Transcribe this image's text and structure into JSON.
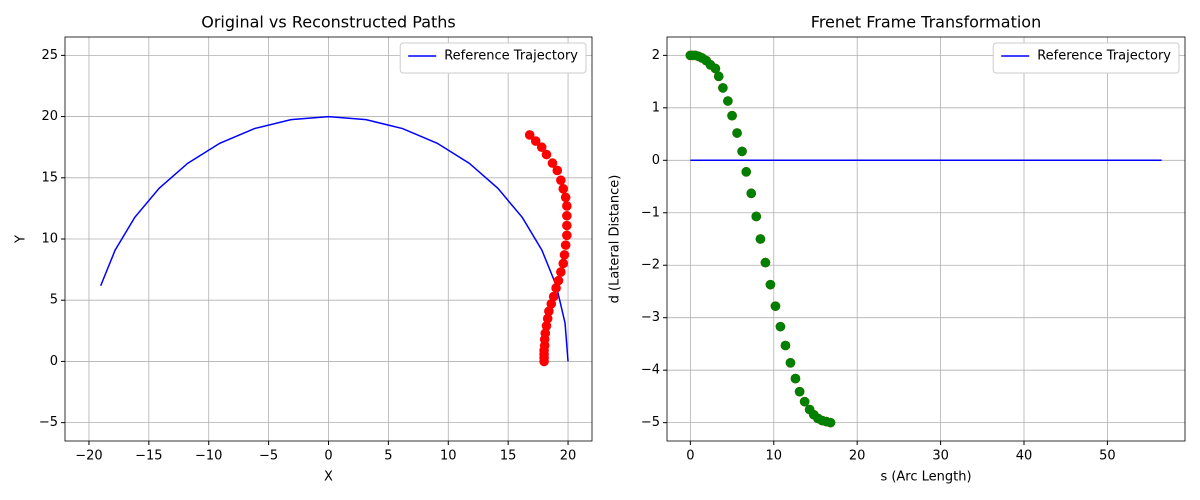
{
  "chart_data": [
    {
      "type": "line",
      "title": "Original vs Reconstructed Paths",
      "xlabel": "X",
      "ylabel": "Y",
      "xlim": [
        -22,
        22
      ],
      "ylim": [
        -6.5,
        26.5
      ],
      "xticks": [
        {
          "value": -20,
          "label": "−20"
        },
        {
          "value": -15,
          "label": "−15"
        },
        {
          "value": -10,
          "label": "−10"
        },
        {
          "value": -5,
          "label": "−5"
        },
        0,
        5,
        10,
        15,
        20
      ],
      "yticks": [
        {
          "value": -5,
          "label": "−5"
        },
        0,
        5,
        10,
        15,
        20,
        25
      ],
      "grid": true,
      "legend": "upper right",
      "series": [
        {
          "name": "Reference Trajectory",
          "type": "line",
          "color": "#0000ff",
          "x": [
            20,
            19.75,
            19.02,
            17.82,
            16.18,
            14.14,
            11.76,
            9.08,
            6.18,
            3.13,
            0,
            -3.13,
            -6.18,
            -9.08,
            -11.76,
            -14.14,
            -16.18,
            -17.82,
            -19.02
          ],
          "values": [
            0,
            3.13,
            6.18,
            9.08,
            11.76,
            14.14,
            16.18,
            17.82,
            19.02,
            19.75,
            20,
            19.75,
            19.02,
            17.82,
            16.18,
            14.14,
            11.76,
            9.08,
            6.18
          ]
        },
        {
          "type": "scatter",
          "color": "#ff0000",
          "x": [
            18,
            18,
            18,
            18,
            18.05,
            18.05,
            18.1,
            18.2,
            18.3,
            18.4,
            18.6,
            18.8,
            19,
            19.2,
            19.4,
            19.6,
            19.7,
            19.8,
            19.9,
            19.9,
            19.9,
            19.9,
            19.8,
            19.6,
            19.4,
            19.1,
            18.7,
            18.2,
            17.8,
            17.3,
            16.8
          ],
          "values": [
            0,
            0.3,
            0.6,
            0.9,
            1.3,
            1.8,
            2.3,
            2.9,
            3.5,
            4.1,
            4.7,
            5.3,
            6,
            6.6,
            7.3,
            8,
            8.7,
            9.5,
            10.3,
            11.1,
            11.9,
            12.7,
            13.4,
            14.1,
            14.8,
            15.6,
            16.2,
            16.9,
            17.5,
            18,
            18.5
          ]
        }
      ]
    },
    {
      "type": "line",
      "title": "Frenet Frame Transformation",
      "xlabel": "s (Arc Length)",
      "ylabel": "d (Lateral Distance)",
      "xlim": [
        -2.8,
        59.3
      ],
      "ylim": [
        -5.35,
        2.35
      ],
      "xticks": [
        0,
        10,
        20,
        30,
        40,
        50
      ],
      "yticks": [
        {
          "value": -5,
          "label": "−5"
        },
        {
          "value": -4,
          "label": "−4"
        },
        {
          "value": -3,
          "label": "−3"
        },
        {
          "value": -2,
          "label": "−2"
        },
        {
          "value": -1,
          "label": "−1"
        },
        0,
        1,
        2
      ],
      "grid": true,
      "legend": "upper right",
      "series": [
        {
          "name": "Reference Trajectory",
          "type": "line",
          "color": "#0000ff",
          "x": [
            0,
            56.5
          ],
          "values": [
            0,
            0
          ]
        },
        {
          "type": "scatter",
          "color": "#ff0000",
          "x": [
            0,
            0.3,
            0.6,
            1.0,
            1.4,
            1.9,
            2.4,
            3.0,
            3.4,
            3.9,
            4.5,
            5.0,
            5.6,
            6.2,
            6.7,
            7.3,
            7.9,
            8.4,
            9.0,
            9.6,
            10.2,
            10.8,
            11.4,
            12.0,
            12.6,
            13.1,
            13.7,
            14.3,
            14.8,
            15.3,
            15.8,
            16.3,
            16.8
          ],
          "values": [
            2,
            2,
            2,
            1.98,
            1.95,
            1.9,
            1.82,
            1.75,
            1.6,
            1.38,
            1.13,
            0.85,
            0.52,
            0.17,
            -0.22,
            -0.63,
            -1.07,
            -1.5,
            -1.95,
            -2.37,
            -2.78,
            -3.17,
            -3.53,
            -3.86,
            -4.16,
            -4.41,
            -4.6,
            -4.75,
            -4.85,
            -4.92,
            -4.96,
            -4.98,
            -5
          ]
        },
        {
          "type": "scatter",
          "color": "#008000",
          "x": [
            0,
            0.3,
            0.6,
            1.0,
            1.4,
            1.9,
            2.4,
            3.0,
            3.4,
            3.9,
            4.5,
            5.0,
            5.6,
            6.2,
            6.7,
            7.3,
            7.9,
            8.4,
            9.0,
            9.6,
            10.2,
            10.8,
            11.4,
            12.0,
            12.6,
            13.1,
            13.7,
            14.3,
            14.8,
            15.3,
            15.8,
            16.3,
            16.8
          ],
          "values": [
            2,
            2,
            2,
            1.98,
            1.95,
            1.9,
            1.82,
            1.75,
            1.6,
            1.38,
            1.13,
            0.85,
            0.52,
            0.17,
            -0.22,
            -0.63,
            -1.07,
            -1.5,
            -1.95,
            -2.37,
            -2.78,
            -3.17,
            -3.53,
            -3.86,
            -4.16,
            -4.41,
            -4.6,
            -4.75,
            -4.85,
            -4.92,
            -4.96,
            -4.98,
            -5
          ]
        }
      ]
    }
  ]
}
